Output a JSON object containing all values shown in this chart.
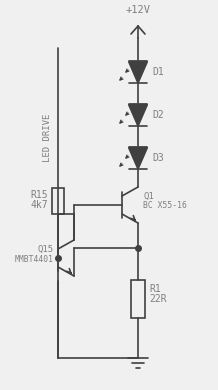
{
  "bg_color": "#f0f0f0",
  "line_color": "#404040",
  "text_color": "#808080",
  "fig_w": 2.18,
  "fig_h": 3.9,
  "dpi": 100,
  "supply_label": "+12V",
  "D1_label": "D1",
  "D2_label": "D2",
  "D3_label": "D3",
  "Q1_label": "Q1",
  "Q1_part": "BC X55-16",
  "Q15_label": "Q15",
  "Q15_part": "MMBT4401",
  "R15_label": "R15",
  "R15_val": "4k7",
  "R1_label": "R1",
  "R1_val": "22R",
  "led_drive_label": "LED DRIVE"
}
